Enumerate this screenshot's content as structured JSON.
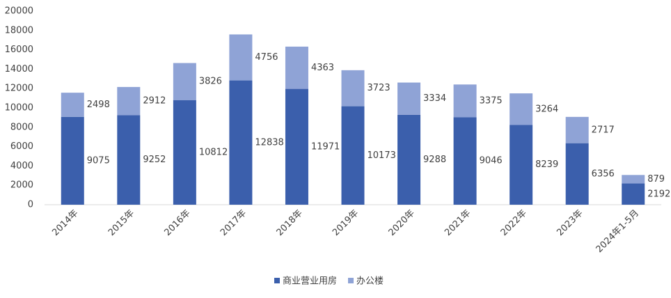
{
  "chart_data": {
    "type": "stacked_bar",
    "categories": [
      "2014年",
      "2015年",
      "2016年",
      "2017年",
      "2018年",
      "2019年",
      "2020年",
      "2021年",
      "2022年",
      "2023年",
      "2024年1-5月"
    ],
    "series": [
      {
        "name": "商业营业用房",
        "color": "#3b5fac",
        "values": [
          9075,
          9252,
          10812,
          12838,
          11971,
          10173,
          9288,
          9046,
          8239,
          6356,
          2192
        ]
      },
      {
        "name": "办公楼",
        "color": "#8fa3d6",
        "values": [
          2498,
          2912,
          3826,
          4756,
          4363,
          3723,
          3334,
          3375,
          3264,
          2717,
          879
        ]
      }
    ],
    "ylim": [
      0,
      20000
    ],
    "yticks": [
      0,
      2000,
      4000,
      6000,
      8000,
      10000,
      12000,
      14000,
      16000,
      18000,
      20000
    ],
    "legend": "bottom"
  }
}
